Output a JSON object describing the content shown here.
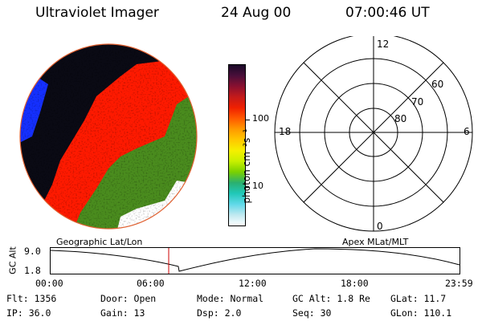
{
  "header": {
    "instrument": "Ultraviolet Imager",
    "date": "24 Aug 00",
    "time": "07:00:46 UT"
  },
  "image_panel": {
    "projection_label": "Geographic Lat/Lon",
    "colors": {
      "black": "#0a0a14",
      "blue": "#1530ff",
      "red": "#ff1a00",
      "green": "#4a8c1e",
      "white": "#ffffff",
      "outline": "#e06030"
    }
  },
  "colorbar": {
    "unit_label": "photon cm⁻²s⁻¹",
    "tick_100": "100",
    "tick_10": "10",
    "stops": [
      "#1a0a28",
      "#4a0f3a",
      "#8a1030",
      "#c41a1a",
      "#f02000",
      "#ff5a00",
      "#ff9a00",
      "#ffc800",
      "#f5f000",
      "#c8f000",
      "#7ad000",
      "#2ab070",
      "#20c8b8",
      "#60d8e8",
      "#bfe8f0",
      "#ffffff"
    ]
  },
  "polar_plot": {
    "projection_label": "Apex MLat/MLT",
    "mlt_top": "12",
    "mlt_left": "18",
    "mlt_right": "6",
    "mlt_bottom": "0",
    "lat_60": "60",
    "lat_70": "70",
    "lat_80": "80"
  },
  "altitude_plot": {
    "ylabel": "GC Alt",
    "y_top": "9.0",
    "y_bottom": "1.8",
    "x_ticks": [
      "00:00",
      "06:00",
      "12:00",
      "18:00",
      "23:59"
    ],
    "marker_color": "#cc0000"
  },
  "status": {
    "flt": "Flt: 1356",
    "ip": "IP: 36.0",
    "door": "Door: Open",
    "gain": "Gain: 13",
    "mode": "Mode: Normal",
    "dsp": "Dsp:    2.0",
    "gc_alt": "GC Alt: 1.8 Re",
    "seq": "Seq: 30",
    "glat": "GLat:  11.7",
    "glon": "GLon: 110.1"
  }
}
